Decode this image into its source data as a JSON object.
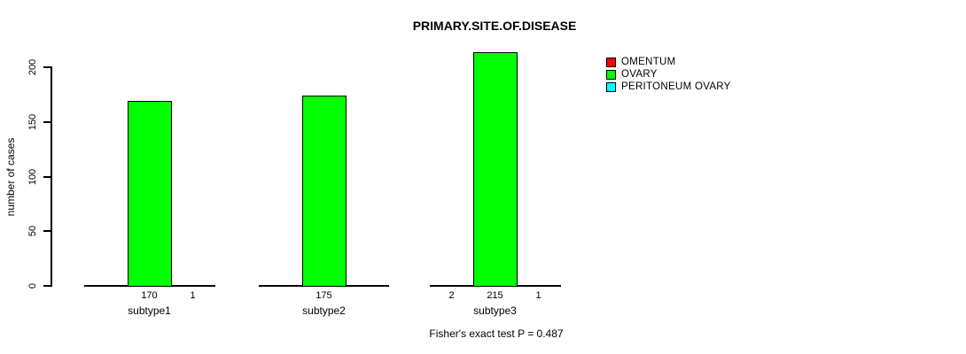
{
  "title": "PRIMARY.SITE.OF.DISEASE",
  "ylabel": "number of cases",
  "footer": "Fisher's exact test P = 0.487",
  "legend": [
    {
      "label": "OMENTUM",
      "color": "#ff0000"
    },
    {
      "label": "OVARY",
      "color": "#00ff00"
    },
    {
      "label": "PERITONEUM OVARY",
      "color": "#00ffff"
    }
  ],
  "chart_data": {
    "type": "bar",
    "title": "PRIMARY.SITE.OF.DISEASE",
    "xlabel": "",
    "ylabel": "number of cases",
    "categories": [
      "subtype1",
      "subtype2",
      "subtype3"
    ],
    "series": [
      {
        "name": "OMENTUM",
        "color": "#ff0000",
        "values": [
          null,
          null,
          2
        ]
      },
      {
        "name": "OVARY",
        "color": "#00ff00",
        "values": [
          170,
          175,
          215
        ]
      },
      {
        "name": "PERITONEUM OVARY",
        "color": "#00ffff",
        "values": [
          1,
          null,
          1
        ]
      }
    ],
    "bar_value_labels": [
      [
        "",
        "170",
        "1"
      ],
      [
        "",
        "175",
        ""
      ],
      [
        "2",
        "215",
        "1"
      ]
    ],
    "yticks": [
      0,
      50,
      100,
      150,
      200
    ],
    "ylim": [
      0,
      200
    ],
    "grid": false,
    "legend_position": "top-right",
    "annotation": "Fisher's exact test P = 0.487"
  }
}
